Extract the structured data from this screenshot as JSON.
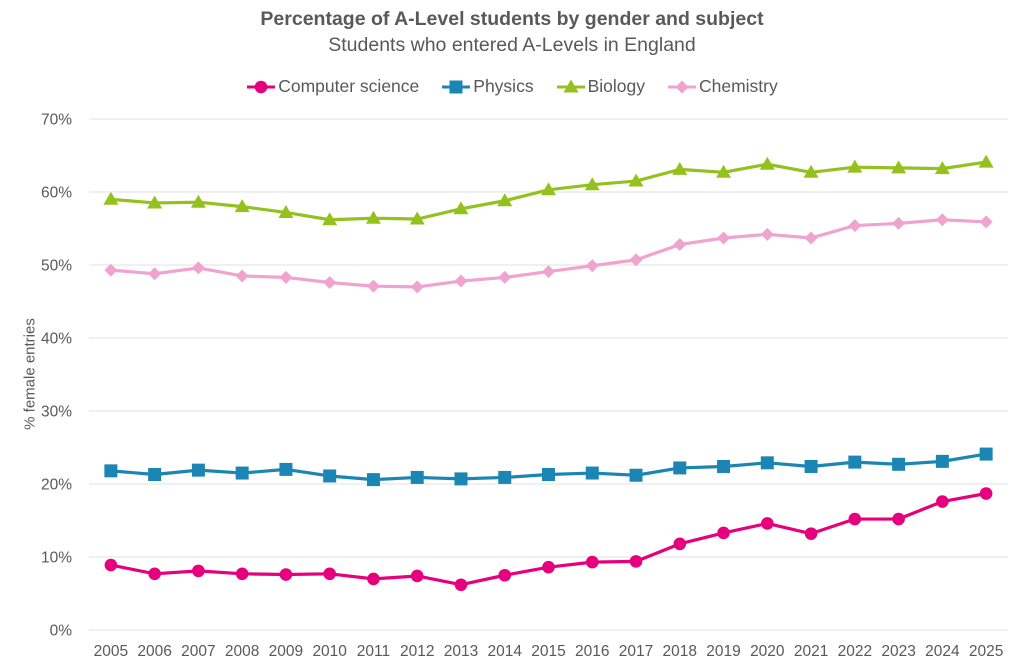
{
  "chart_data": {
    "type": "line",
    "title": "Percentage of A-Level students by gender and subject",
    "subtitle": "Students who entered A-Levels in England",
    "xlabel": "",
    "ylabel": "% female entries",
    "ylim": [
      0,
      70
    ],
    "yticks": [
      0,
      10,
      20,
      30,
      40,
      50,
      60,
      70
    ],
    "ytick_labels": [
      "0%",
      "10%",
      "20%",
      "30%",
      "40%",
      "50%",
      "60%",
      "70%"
    ],
    "grid": true,
    "legend_position": "top-center",
    "categories": [
      "2005",
      "2006",
      "2007",
      "2008",
      "2009",
      "2010",
      "2011",
      "2012",
      "2013",
      "2014",
      "2015",
      "2016",
      "2017",
      "2018",
      "2019",
      "2020",
      "2021",
      "2022",
      "2023",
      "2024",
      "2025"
    ],
    "series": [
      {
        "name": "Computer science",
        "color": "#e6007e",
        "marker": "circle",
        "values": [
          8.9,
          7.7,
          8.1,
          7.7,
          7.6,
          7.7,
          7.0,
          7.4,
          6.2,
          7.5,
          8.6,
          9.3,
          9.4,
          11.8,
          13.3,
          14.6,
          13.2,
          15.2,
          15.2,
          17.6,
          18.7
        ]
      },
      {
        "name": "Physics",
        "color": "#1b86b4",
        "marker": "square",
        "values": [
          21.8,
          21.3,
          21.9,
          21.5,
          22.0,
          21.1,
          20.6,
          20.9,
          20.7,
          20.9,
          21.3,
          21.5,
          21.2,
          22.2,
          22.4,
          22.9,
          22.4,
          23.0,
          22.7,
          23.1,
          24.1
        ]
      },
      {
        "name": "Biology",
        "color": "#95c11f",
        "marker": "triangle",
        "values": [
          59.0,
          58.5,
          58.6,
          58.0,
          57.2,
          56.2,
          56.4,
          56.3,
          57.7,
          58.8,
          60.3,
          61.0,
          61.5,
          63.1,
          62.7,
          63.8,
          62.7,
          63.4,
          63.3,
          63.2,
          64.1
        ]
      },
      {
        "name": "Chemistry",
        "color": "#f0a3cf",
        "marker": "diamond",
        "values": [
          49.3,
          48.8,
          49.6,
          48.5,
          48.3,
          47.6,
          47.1,
          47.0,
          47.8,
          48.3,
          49.1,
          49.9,
          50.7,
          52.8,
          53.7,
          54.2,
          53.7,
          55.4,
          55.7,
          56.2,
          55.9
        ]
      }
    ],
    "gridline_color": "#e6e6e6"
  }
}
